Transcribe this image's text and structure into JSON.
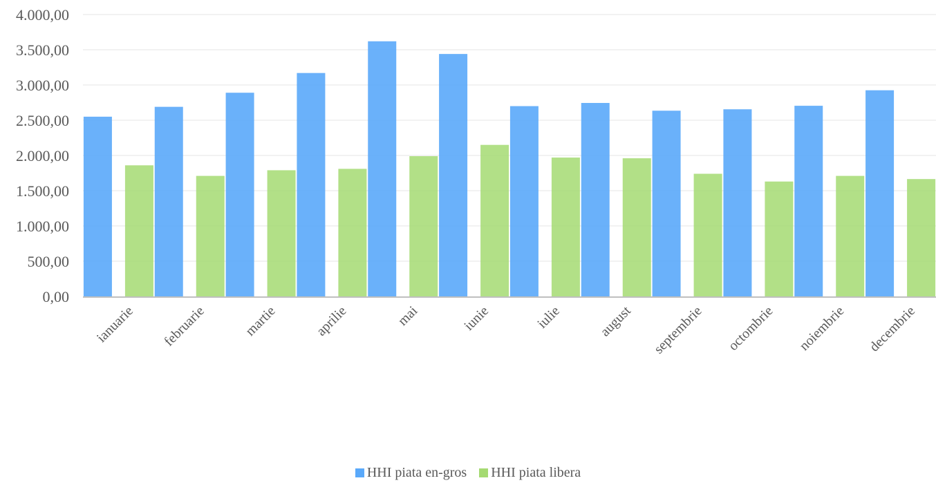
{
  "chart_data": {
    "type": "bar",
    "title": "",
    "xlabel": "",
    "ylabel": "",
    "ylim": [
      0,
      4000
    ],
    "ytick_values": [
      0,
      500,
      1000,
      1500,
      2000,
      2500,
      3000,
      3500,
      4000
    ],
    "ytick_labels": [
      "0,00",
      "500,00",
      "1.000,00",
      "1.500,00",
      "2.000,00",
      "2.500,00",
      "3.000,00",
      "3.500,00",
      "4.000,00"
    ],
    "categories": [
      "ianuarie",
      "februarie",
      "martie",
      "aprilie",
      "mai",
      "iunie",
      "iulie",
      "august",
      "septembrie",
      "octombrie",
      "noiembrie",
      "decembrie"
    ],
    "series": [
      {
        "name": "HHI piata en-gros",
        "color": "#5AA9FA",
        "values": [
          2550,
          2690,
          2890,
          3170,
          3620,
          3440,
          2700,
          2745,
          2635,
          2655,
          2705,
          2925
        ]
      },
      {
        "name": "HHI piata libera",
        "color": "#A5DA72",
        "values": [
          1860,
          1710,
          1790,
          1810,
          1990,
          2150,
          1970,
          1960,
          1740,
          1630,
          1710,
          1665
        ]
      }
    ],
    "grid": true,
    "legend_position": "bottom"
  }
}
